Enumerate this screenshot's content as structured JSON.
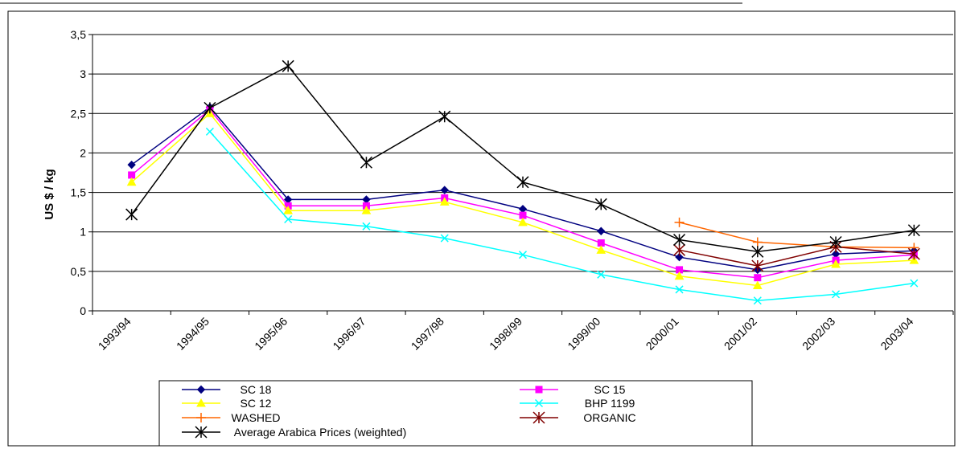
{
  "chart_data": {
    "type": "line",
    "title": "",
    "xlabel": "",
    "ylabel": "US $ / kg",
    "ylim": [
      0,
      3.5
    ],
    "yticks": [
      "0",
      "0,5",
      "1",
      "1,5",
      "2",
      "2,5",
      "3",
      "3,5"
    ],
    "ytick_values": [
      0,
      0.5,
      1,
      1.5,
      2,
      2.5,
      3,
      3.5
    ],
    "grid": "horizontal",
    "legend_position": "bottom",
    "categories": [
      "1993/94",
      "1994/95",
      "1995/96",
      "1996/97",
      "1997/98",
      "1998/99",
      "1999/00",
      "2000/01",
      "2001/02",
      "2002/03",
      "2003/04"
    ],
    "series": [
      {
        "name": "SC 18",
        "color": "#000080",
        "marker": "diamond",
        "values": [
          1.85,
          2.58,
          1.41,
          1.41,
          1.53,
          1.29,
          1.01,
          0.68,
          0.52,
          0.72,
          0.76
        ]
      },
      {
        "name": "SC 15",
        "color": "#ff00ff",
        "marker": "square",
        "values": [
          1.72,
          2.55,
          1.33,
          1.33,
          1.43,
          1.21,
          0.86,
          0.52,
          0.42,
          0.64,
          0.71
        ]
      },
      {
        "name": "SC 12",
        "color": "#ffff00",
        "marker": "triangle",
        "values": [
          1.63,
          2.5,
          1.27,
          1.27,
          1.38,
          1.12,
          0.77,
          0.44,
          0.32,
          0.59,
          0.64
        ]
      },
      {
        "name": "BHP 1199",
        "color": "#00ffff",
        "marker": "x",
        "values": [
          null,
          2.27,
          1.16,
          1.07,
          0.92,
          0.71,
          0.46,
          0.27,
          0.13,
          0.21,
          0.35
        ]
      },
      {
        "name": "WASHED",
        "color": "#ff6600",
        "marker": "plus",
        "values": [
          null,
          null,
          null,
          null,
          null,
          null,
          null,
          1.12,
          0.87,
          0.81,
          0.8
        ]
      },
      {
        "name": "ORGANIC",
        "color": "#800000",
        "marker": "star",
        "values": [
          null,
          null,
          null,
          null,
          null,
          null,
          null,
          0.77,
          0.57,
          0.81,
          0.72
        ]
      },
      {
        "name": "Average Arabica Prices (weighted)",
        "color": "#000000",
        "marker": "star",
        "values": [
          1.22,
          2.57,
          3.1,
          1.88,
          2.46,
          1.63,
          1.35,
          0.9,
          0.75,
          0.87,
          1.02
        ]
      }
    ]
  }
}
